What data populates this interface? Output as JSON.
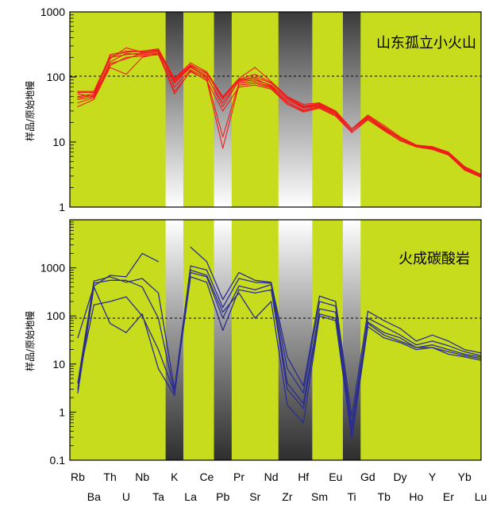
{
  "chart_data": [
    {
      "type": "line",
      "panel": "top",
      "title": "山东孤立小火山",
      "ylabel": "样品/原始地幔",
      "yscale": "log",
      "ylim": [
        1,
        1000
      ],
      "yticks": [
        "1",
        "10",
        "100",
        "1000"
      ],
      "reference_line": 100,
      "grid": false,
      "line_color": "#ee1c1c",
      "background_color": "#c8dc1e",
      "band_elements": [
        "K",
        "Pb",
        "Zr",
        "Hf",
        "Ti"
      ],
      "categories": [
        "Rb",
        "Ba",
        "Th",
        "U",
        "Nb",
        "Ta",
        "K",
        "La",
        "Ce",
        "Pb",
        "Pr",
        "Sr",
        "Nd",
        "Zr",
        "Hf",
        "Sm",
        "Eu",
        "Ti",
        "Gd",
        "Tb",
        "Dy",
        "Ho",
        "Y",
        "Er",
        "Yb",
        "Lu"
      ],
      "series": [
        {
          "values": [
            55,
            50,
            220,
            250,
            250,
            270,
            95,
            165,
            120,
            50,
            95,
            140,
            85,
            50,
            38,
            40,
            30,
            16,
            26,
            18,
            12,
            9,
            8.5,
            7,
            4.2,
            3.2
          ]
        },
        {
          "values": [
            60,
            60,
            210,
            240,
            250,
            260,
            90,
            150,
            115,
            45,
            90,
            100,
            80,
            48,
            35,
            38,
            29,
            15,
            25,
            17,
            11.5,
            9,
            8.2,
            6.8,
            4,
            3.1
          ]
        },
        {
          "values": [
            50,
            55,
            190,
            280,
            240,
            250,
            80,
            140,
            100,
            40,
            85,
            90,
            75,
            45,
            33,
            36,
            28,
            15,
            24,
            16.5,
            11,
            8.8,
            8,
            6.6,
            3.9,
            3
          ]
        },
        {
          "values": [
            45,
            50,
            170,
            230,
            220,
            230,
            70,
            130,
            95,
            12,
            80,
            85,
            70,
            42,
            31,
            35,
            27,
            14,
            23,
            16,
            11,
            8.6,
            7.9,
            6.5,
            3.8,
            3
          ]
        },
        {
          "values": [
            40,
            48,
            150,
            200,
            210,
            220,
            60,
            120,
            90,
            8,
            75,
            80,
            68,
            40,
            30,
            34,
            26,
            14,
            22,
            15.5,
            10.5,
            8.5,
            7.8,
            6.4,
            3.7,
            2.9
          ]
        },
        {
          "values": [
            35,
            45,
            140,
            110,
            200,
            230,
            55,
            125,
            88,
            30,
            70,
            75,
            65,
            38,
            29,
            33,
            25,
            14,
            22,
            15,
            10.5,
            8.4,
            7.7,
            6.3,
            3.7,
            2.9
          ]
        },
        {
          "values": [
            48,
            52,
            160,
            190,
            230,
            240,
            85,
            145,
            105,
            35,
            88,
            95,
            72,
            46,
            34,
            37,
            28,
            15,
            24,
            16.5,
            11,
            8.7,
            8,
            6.6,
            3.9,
            3
          ]
        },
        {
          "values": [
            58,
            58,
            200,
            220,
            235,
            255,
            92,
            155,
            112,
            48,
            92,
            110,
            82,
            49,
            36,
            39,
            30,
            16,
            25,
            17,
            11.5,
            9,
            8.3,
            6.9,
            4.1,
            3.1
          ]
        }
      ]
    },
    {
      "type": "line",
      "panel": "bottom",
      "title": "火成碳酸岩",
      "ylabel": "样品/原始地幔",
      "yscale": "log",
      "ylim": [
        0.1,
        10000
      ],
      "yticks": [
        "0.1",
        "1",
        "10",
        "100",
        "1000"
      ],
      "reference_line": 100,
      "grid": false,
      "line_color": "#2b2d8f",
      "background_color": "#c8dc1e",
      "band_elements": [
        "K",
        "Pb",
        "Zr",
        "Hf",
        "Ti"
      ],
      "categories": [
        "Rb",
        "Ba",
        "Th",
        "U",
        "Nb",
        "Ta",
        "K",
        "La",
        "Ce",
        "Pb",
        "Pr",
        "Sr",
        "Nd",
        "Zr",
        "Hf",
        "Sm",
        "Eu",
        "Ti",
        "Gd",
        "Tb",
        "Dy",
        "Ho",
        "Y",
        "Er",
        "Yb",
        "Lu"
      ],
      "series": [
        {
          "values": [
            35,
            420,
            700,
            650,
            2000,
            1350,
            null,
            2700,
            1350,
            220,
            800,
            550,
            500,
            14,
            3.5,
            260,
            200,
            0.8,
            125,
            80,
            55,
            30,
            40,
            30,
            20,
            17
          ]
        },
        {
          "values": [
            4,
            530,
            650,
            500,
            600,
            300,
            3,
            1100,
            900,
            150,
            600,
            500,
            480,
            8,
            2.5,
            200,
            160,
            0.5,
            90,
            60,
            40,
            25,
            30,
            24,
            18,
            15
          ]
        },
        {
          "values": [
            3,
            480,
            550,
            550,
            400,
            90,
            2.5,
            800,
            650,
            90,
            420,
            350,
            450,
            4,
            1.5,
            140,
            120,
            0.35,
            75,
            45,
            35,
            22,
            25,
            20,
            16,
            14
          ]
        },
        {
          "values": [
            4,
            170,
            200,
            250,
            100,
            20,
            2.5,
            650,
            500,
            50,
            350,
            300,
            350,
            3,
            1.2,
            110,
            90,
            0.3,
            70,
            40,
            30,
            22,
            22,
            18,
            15,
            13
          ]
        },
        {
          "values": [
            2.5,
            400,
            70,
            45,
            110,
            8,
            2.2,
            900,
            700,
            120,
            300,
            90,
            200,
            1.4,
            0.6,
            100,
            80,
            0.28,
            60,
            35,
            28,
            20,
            22,
            16,
            14,
            12
          ]
        }
      ]
    }
  ]
}
